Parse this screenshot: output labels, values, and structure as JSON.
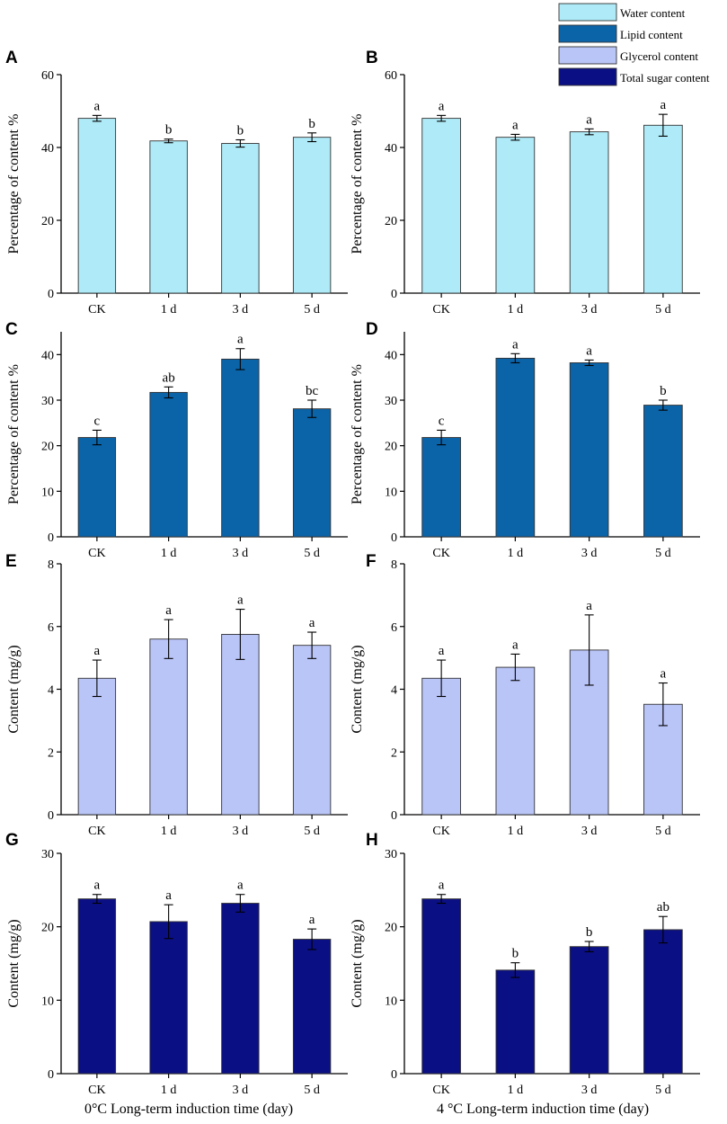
{
  "legend": [
    {
      "label": "Water content",
      "color": "#aeeaf7"
    },
    {
      "label": "Lipid content",
      "color": "#0b63a8"
    },
    {
      "label": "Glycerol content",
      "color": "#b9c4f7"
    },
    {
      "label": "Total sugar content",
      "color": "#0b0f84"
    }
  ],
  "x_titles": {
    "left": "0°C Long-term induction time (day)",
    "right": "4 °C Long-term induction time (day)"
  },
  "chart_data": [
    {
      "panel": "A",
      "type": "bar",
      "categories": [
        "CK",
        "1 d",
        "3 d",
        "5 d"
      ],
      "values": [
        48,
        41.8,
        41.1,
        42.8
      ],
      "errors": [
        0.8,
        0.5,
        1.0,
        1.2
      ],
      "labels": [
        "a",
        "b",
        "b",
        "b"
      ],
      "ylabel": "Percentage of content %",
      "ylim": [
        0,
        60
      ],
      "yticks": [
        0,
        20,
        40,
        60
      ],
      "series": "Water content",
      "color": "#aeeaf7"
    },
    {
      "panel": "B",
      "type": "bar",
      "categories": [
        "CK",
        "1 d",
        "3 d",
        "5 d"
      ],
      "values": [
        48,
        42.8,
        44.3,
        46.1
      ],
      "errors": [
        0.8,
        0.8,
        0.8,
        3.0
      ],
      "labels": [
        "a",
        "a",
        "a",
        "a"
      ],
      "ylabel": "Percentage of content %",
      "ylim": [
        0,
        60
      ],
      "yticks": [
        0,
        20,
        40,
        60
      ],
      "series": "Water content",
      "color": "#aeeaf7"
    },
    {
      "panel": "C",
      "type": "bar",
      "categories": [
        "CK",
        "1 d",
        "3 d",
        "5 d"
      ],
      "values": [
        21.8,
        31.7,
        39.0,
        28.1
      ],
      "errors": [
        1.6,
        1.2,
        2.3,
        1.9
      ],
      "labels": [
        "c",
        "ab",
        "a",
        "bc"
      ],
      "ylabel": "Percentage of content %",
      "ylim": [
        0,
        45
      ],
      "yticks": [
        0,
        10,
        20,
        30,
        40
      ],
      "series": "Lipid content",
      "color": "#0b63a8"
    },
    {
      "panel": "D",
      "type": "bar",
      "categories": [
        "CK",
        "1 d",
        "3 d",
        "5 d"
      ],
      "values": [
        21.8,
        39.2,
        38.2,
        28.9
      ],
      "errors": [
        1.6,
        1.0,
        0.6,
        1.1
      ],
      "labels": [
        "c",
        "a",
        "a",
        "b"
      ],
      "ylabel": "Percentage of content %",
      "ylim": [
        0,
        45
      ],
      "yticks": [
        0,
        10,
        20,
        30,
        40
      ],
      "series": "Lipid content",
      "color": "#0b63a8"
    },
    {
      "panel": "E",
      "type": "bar",
      "categories": [
        "CK",
        "1 d",
        "3 d",
        "5 d"
      ],
      "values": [
        4.35,
        5.6,
        5.75,
        5.4
      ],
      "errors": [
        0.58,
        0.62,
        0.8,
        0.42
      ],
      "labels": [
        "a",
        "a",
        "a",
        "a"
      ],
      "ylabel": "Content (mg/g)",
      "ylim": [
        0,
        8
      ],
      "yticks": [
        0,
        2,
        4,
        6,
        8
      ],
      "series": "Glycerol content",
      "color": "#b9c4f7"
    },
    {
      "panel": "F",
      "type": "bar",
      "categories": [
        "CK",
        "1 d",
        "3 d",
        "5 d"
      ],
      "values": [
        4.35,
        4.7,
        5.25,
        3.52
      ],
      "errors": [
        0.58,
        0.42,
        1.12,
        0.68
      ],
      "labels": [
        "a",
        "a",
        "a",
        "a"
      ],
      "ylabel": "Content (mg/g)",
      "ylim": [
        0,
        8
      ],
      "yticks": [
        0,
        2,
        4,
        6,
        8
      ],
      "series": "Glycerol content",
      "color": "#b9c4f7"
    },
    {
      "panel": "G",
      "type": "bar",
      "categories": [
        "CK",
        "1 d",
        "3 d",
        "5 d"
      ],
      "values": [
        23.8,
        20.7,
        23.2,
        18.3
      ],
      "errors": [
        0.6,
        2.3,
        1.2,
        1.4
      ],
      "labels": [
        "a",
        "a",
        "a",
        "a"
      ],
      "ylabel": "Content (mg/g)",
      "ylim": [
        0,
        30
      ],
      "yticks": [
        0,
        10,
        20,
        30
      ],
      "series": "Total sugar content",
      "color": "#0b0f84"
    },
    {
      "panel": "H",
      "type": "bar",
      "categories": [
        "CK",
        "1 d",
        "3 d",
        "5 d"
      ],
      "values": [
        23.8,
        14.1,
        17.3,
        19.6
      ],
      "errors": [
        0.6,
        1.0,
        0.7,
        1.8
      ],
      "labels": [
        "a",
        "b",
        "b",
        "ab"
      ],
      "ylabel": "Content (mg/g)",
      "ylim": [
        0,
        30
      ],
      "yticks": [
        0,
        10,
        20,
        30
      ],
      "series": "Total sugar content",
      "color": "#0b0f84"
    }
  ]
}
